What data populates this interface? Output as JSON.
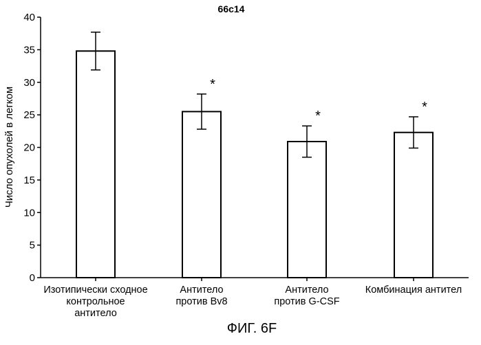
{
  "chart_data": {
    "type": "bar",
    "title": "66c14",
    "ylabel": "Число опухолей в легком",
    "xlabel": "",
    "ylim": [
      0,
      40
    ],
    "yticks": [
      0,
      5,
      10,
      15,
      20,
      25,
      30,
      35,
      40
    ],
    "categories": [
      [
        "Изотипически сходное",
        "контрольное",
        "антитело"
      ],
      [
        "Антитело",
        "против Bv8"
      ],
      [
        "Антитело",
        "против G-CSF"
      ],
      [
        "Комбинация антител"
      ]
    ],
    "values": [
      34.8,
      25.5,
      20.9,
      22.3
    ],
    "errors": [
      2.9,
      2.7,
      2.4,
      2.4
    ],
    "significance": [
      "",
      "*",
      "*",
      "*"
    ],
    "grid": false,
    "legend": "none",
    "bar_fill": "#ffffff",
    "bar_stroke": "#000000"
  },
  "figure_caption": "ФИГ. 6F"
}
